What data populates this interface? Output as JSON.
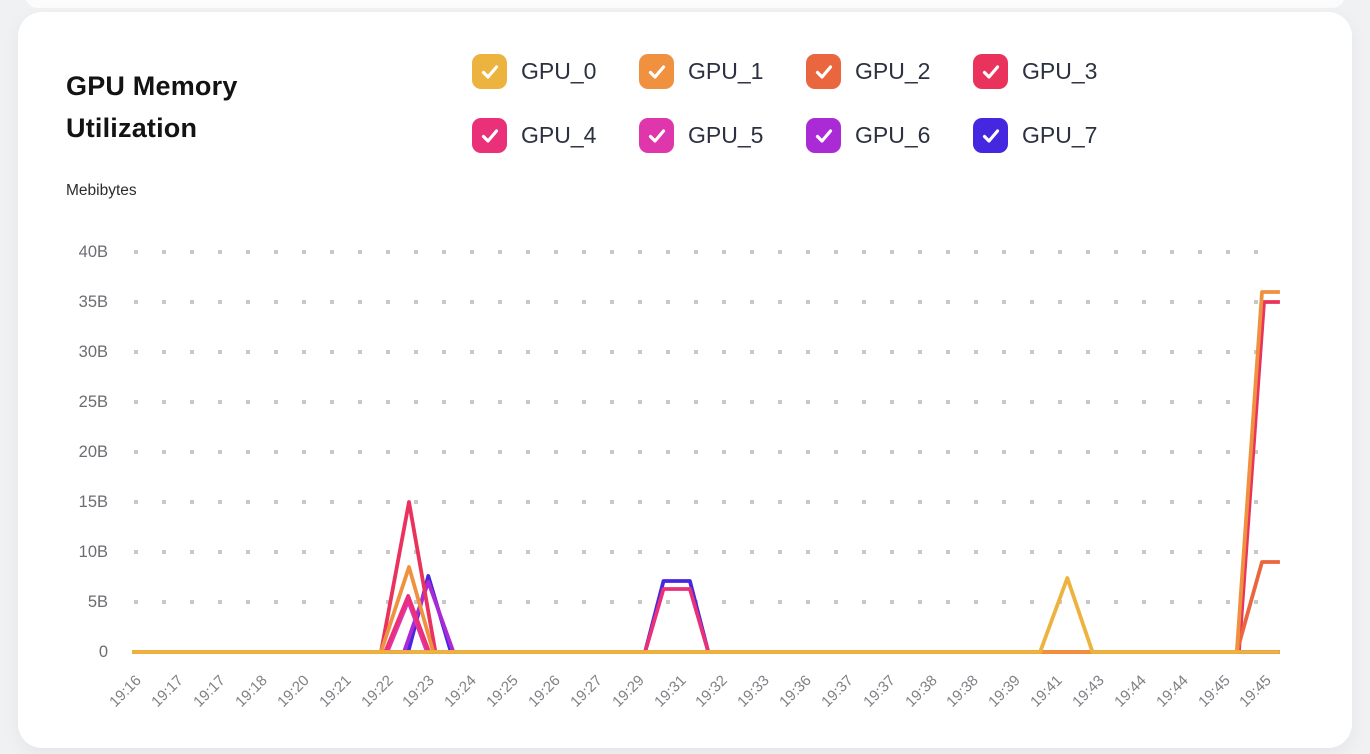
{
  "card": {
    "title": "GPU Memory Utilization",
    "unit_label": "Mebibytes"
  },
  "legend": {
    "items": [
      {
        "label": "GPU_0",
        "color": "#edb33f",
        "checked": true
      },
      {
        "label": "GPU_1",
        "color": "#f0913f",
        "checked": true
      },
      {
        "label": "GPU_2",
        "color": "#ea663f",
        "checked": true
      },
      {
        "label": "GPU_3",
        "color": "#e9335c",
        "checked": true
      },
      {
        "label": "GPU_4",
        "color": "#e93079",
        "checked": true
      },
      {
        "label": "GPU_5",
        "color": "#df36ab",
        "checked": true
      },
      {
        "label": "GPU_6",
        "color": "#aa2bd5",
        "checked": true
      },
      {
        "label": "GPU_7",
        "color": "#4527e0",
        "checked": true
      }
    ]
  },
  "chart_data": {
    "type": "line",
    "title": "GPU Memory Utilization",
    "xlabel": "",
    "ylabel": "Mebibytes",
    "legend_position": "top",
    "grid": "dotted",
    "grid_dot_color": "#c7c8ca",
    "ylim": [
      0,
      42
    ],
    "y_unit_suffix": "B",
    "yticks": [
      {
        "label": "40B",
        "value": 40
      },
      {
        "label": "35B",
        "value": 35
      },
      {
        "label": "30B",
        "value": 30
      },
      {
        "label": "25B",
        "value": 25
      },
      {
        "label": "20B",
        "value": 20
      },
      {
        "label": "15B",
        "value": 15
      },
      {
        "label": "10B",
        "value": 10
      },
      {
        "label": "5B",
        "value": 5
      },
      {
        "label": "0",
        "value": 0
      }
    ],
    "categories": [
      "19:16",
      "19:17",
      "19:17",
      "19:18",
      "19:20",
      "19:21",
      "19:22",
      "19:23",
      "19:24",
      "19:25",
      "19:26",
      "19:27",
      "19:29",
      "19:31",
      "19:32",
      "19:33",
      "19:36",
      "19:37",
      "19:37",
      "19:38",
      "19:38",
      "19:39",
      "19:41",
      "19:43",
      "19:44",
      "19:44",
      "19:45",
      "19:45"
    ],
    "series_note": "points are [category_index, value_in_B]; all series sit at 0 except listed spikes",
    "series": [
      {
        "name": "GPU_0",
        "color": "#edb33f",
        "points": [
          [
            0,
            0
          ],
          [
            21.7,
            0
          ],
          [
            22.35,
            7.4
          ],
          [
            22.95,
            0
          ],
          [
            27.43,
            0
          ]
        ]
      },
      {
        "name": "GPU_1",
        "color": "#f0913f",
        "points": [
          [
            0,
            0
          ],
          [
            5.95,
            0
          ],
          [
            6.62,
            8.5
          ],
          [
            7.2,
            0
          ],
          [
            26.4,
            0
          ],
          [
            27.0,
            36
          ],
          [
            27.43,
            36
          ]
        ]
      },
      {
        "name": "GPU_2",
        "color": "#ea663f",
        "points": [
          [
            0,
            0
          ],
          [
            26.4,
            0
          ],
          [
            27.0,
            9
          ],
          [
            27.43,
            9
          ]
        ]
      },
      {
        "name": "GPU_3",
        "color": "#e9335c",
        "points": [
          [
            0,
            0
          ],
          [
            5.95,
            0
          ],
          [
            6.62,
            15
          ],
          [
            7.25,
            0
          ],
          [
            26.45,
            0
          ],
          [
            27.05,
            35
          ],
          [
            27.43,
            35
          ]
        ]
      },
      {
        "name": "GPU_4",
        "color": "#e93079",
        "points": [
          [
            0,
            0
          ],
          [
            6.05,
            0
          ],
          [
            6.6,
            5.6
          ],
          [
            7.1,
            0
          ],
          [
            12.26,
            0
          ],
          [
            12.7,
            6.3
          ],
          [
            13.33,
            6.3
          ],
          [
            13.77,
            0
          ],
          [
            27.43,
            0
          ]
        ]
      },
      {
        "name": "GPU_5",
        "color": "#df36ab",
        "points": [
          [
            0,
            0
          ],
          [
            6.1,
            0
          ],
          [
            6.6,
            5.1
          ],
          [
            7.05,
            0
          ],
          [
            27.43,
            0
          ]
        ]
      },
      {
        "name": "GPU_6",
        "color": "#aa2bd5",
        "points": [
          [
            0,
            0
          ],
          [
            6.5,
            0
          ],
          [
            7.08,
            7.0
          ],
          [
            7.68,
            0
          ],
          [
            27.43,
            0
          ]
        ]
      },
      {
        "name": "GPU_7",
        "color": "#4527e0",
        "points": [
          [
            0,
            0
          ],
          [
            6.6,
            0
          ],
          [
            7.08,
            7.6
          ],
          [
            7.62,
            0
          ],
          [
            12.26,
            0
          ],
          [
            12.7,
            7.1
          ],
          [
            13.33,
            7.1
          ],
          [
            13.77,
            0
          ],
          [
            27.43,
            0
          ]
        ]
      }
    ]
  }
}
